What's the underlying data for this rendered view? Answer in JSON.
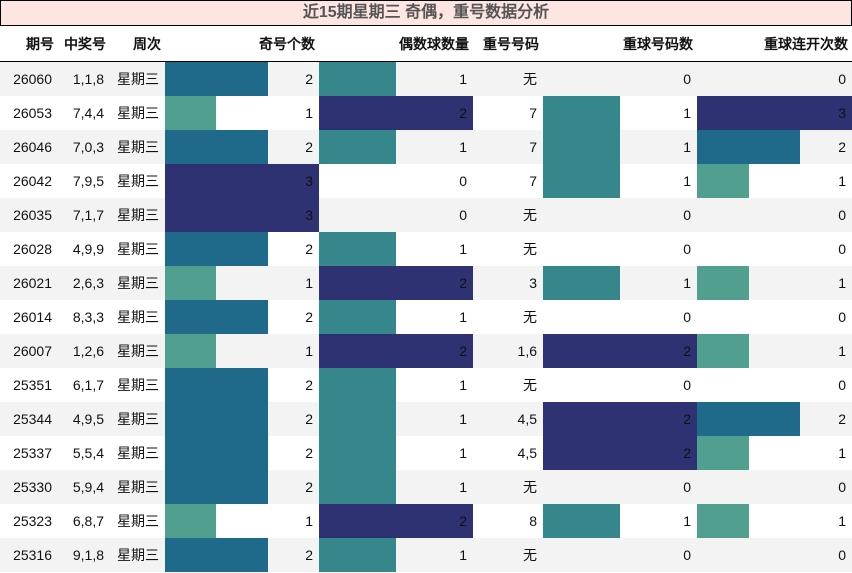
{
  "title": "近15期星期三 奇偶，重号数据分析",
  "columns": [
    "期号",
    "中奖号",
    "周次",
    "奇号个数",
    "偶数球数量",
    "重号号码",
    "重球号码数",
    "重球连开次数"
  ],
  "colors": {
    "green": "#519f8f",
    "teal": "#35878c",
    "blue": "#1f6a8a",
    "navy": "#2e3172",
    "title_bg": "#fde6e1",
    "stripe": "#f3f3f3"
  },
  "bar_scale_max": {
    "odd": 3,
    "even": 2,
    "repeat_count": 2,
    "consecutive": 3
  },
  "rows": [
    {
      "issue": "26060",
      "numbers": "1,1,8",
      "weekday": "星期三",
      "odd": 2,
      "even": 1,
      "repeat_nums": "无",
      "repeat_count": 0,
      "consecutive": 0
    },
    {
      "issue": "26053",
      "numbers": "7,4,4",
      "weekday": "星期三",
      "odd": 1,
      "even": 2,
      "repeat_nums": "7",
      "repeat_count": 1,
      "consecutive": 3
    },
    {
      "issue": "26046",
      "numbers": "7,0,3",
      "weekday": "星期三",
      "odd": 2,
      "even": 1,
      "repeat_nums": "7",
      "repeat_count": 1,
      "consecutive": 2
    },
    {
      "issue": "26042",
      "numbers": "7,9,5",
      "weekday": "星期三",
      "odd": 3,
      "even": 0,
      "repeat_nums": "7",
      "repeat_count": 1,
      "consecutive": 1
    },
    {
      "issue": "26035",
      "numbers": "7,1,7",
      "weekday": "星期三",
      "odd": 3,
      "even": 0,
      "repeat_nums": "无",
      "repeat_count": 0,
      "consecutive": 0
    },
    {
      "issue": "26028",
      "numbers": "4,9,9",
      "weekday": "星期三",
      "odd": 2,
      "even": 1,
      "repeat_nums": "无",
      "repeat_count": 0,
      "consecutive": 0
    },
    {
      "issue": "26021",
      "numbers": "2,6,3",
      "weekday": "星期三",
      "odd": 1,
      "even": 2,
      "repeat_nums": "3",
      "repeat_count": 1,
      "consecutive": 1
    },
    {
      "issue": "26014",
      "numbers": "8,3,3",
      "weekday": "星期三",
      "odd": 2,
      "even": 1,
      "repeat_nums": "无",
      "repeat_count": 0,
      "consecutive": 0
    },
    {
      "issue": "26007",
      "numbers": "1,2,6",
      "weekday": "星期三",
      "odd": 1,
      "even": 2,
      "repeat_nums": "1,6",
      "repeat_count": 2,
      "consecutive": 1
    },
    {
      "issue": "25351",
      "numbers": "6,1,7",
      "weekday": "星期三",
      "odd": 2,
      "even": 1,
      "repeat_nums": "无",
      "repeat_count": 0,
      "consecutive": 0
    },
    {
      "issue": "25344",
      "numbers": "4,9,5",
      "weekday": "星期三",
      "odd": 2,
      "even": 1,
      "repeat_nums": "4,5",
      "repeat_count": 2,
      "consecutive": 2
    },
    {
      "issue": "25337",
      "numbers": "5,5,4",
      "weekday": "星期三",
      "odd": 2,
      "even": 1,
      "repeat_nums": "4,5",
      "repeat_count": 2,
      "consecutive": 1
    },
    {
      "issue": "25330",
      "numbers": "5,9,4",
      "weekday": "星期三",
      "odd": 2,
      "even": 1,
      "repeat_nums": "无",
      "repeat_count": 0,
      "consecutive": 0
    },
    {
      "issue": "25323",
      "numbers": "6,8,7",
      "weekday": "星期三",
      "odd": 1,
      "even": 2,
      "repeat_nums": "8",
      "repeat_count": 1,
      "consecutive": 1
    },
    {
      "issue": "25316",
      "numbers": "9,1,8",
      "weekday": "星期三",
      "odd": 2,
      "even": 1,
      "repeat_nums": "无",
      "repeat_count": 0,
      "consecutive": 0
    }
  ]
}
